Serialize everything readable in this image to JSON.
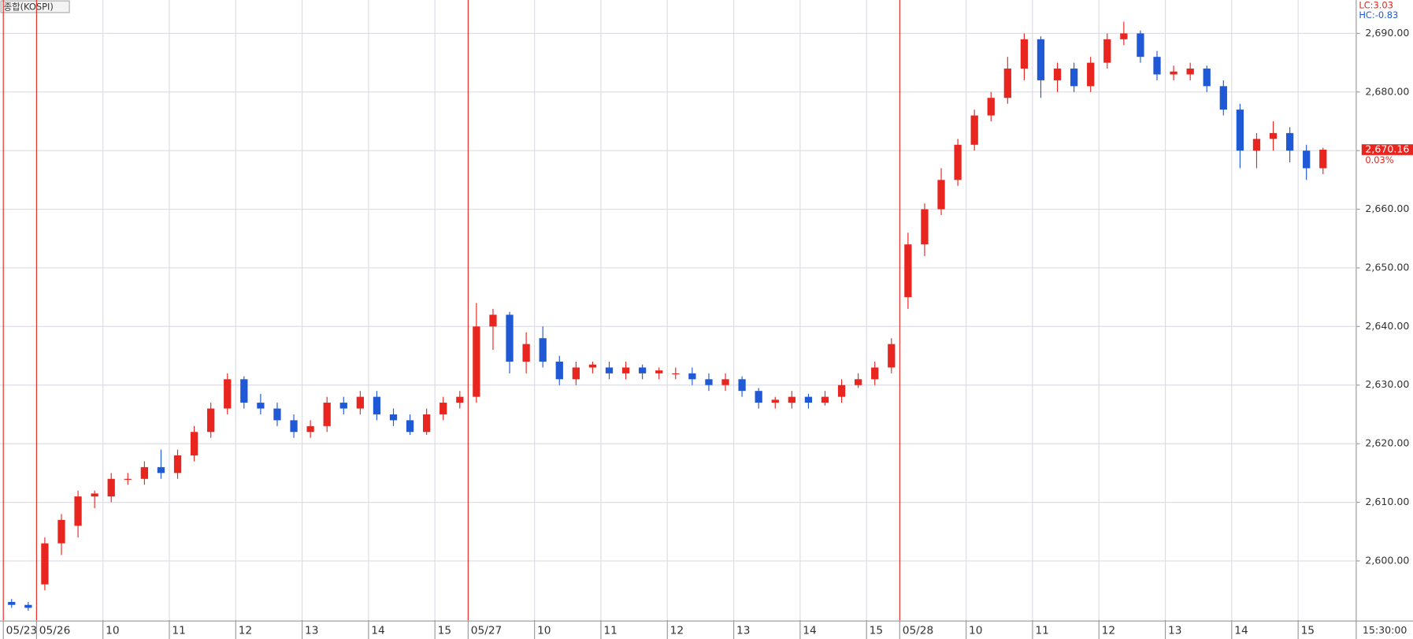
{
  "chart_data": {
    "type": "candlestick",
    "title": "종합(KOSPI)",
    "annotations": [
      "LC:3.03",
      "HC:-0.83"
    ],
    "last_price": {
      "value": 2670.16,
      "label": "2,670.16"
    },
    "last_change": "0.03%",
    "time_label": "15:30:00",
    "up_color": "#e8251f",
    "down_color": "#1f59d6",
    "grid": true,
    "ylim": [
      2589.9,
      2695.7
    ],
    "yticks": [
      {
        "value": 2600,
        "label": "2,600.00"
      },
      {
        "value": 2610,
        "label": "2,610.00"
      },
      {
        "value": 2620,
        "label": "2,620.00"
      },
      {
        "value": 2630,
        "label": "2,630.00"
      },
      {
        "value": 2640,
        "label": "2,640.00"
      },
      {
        "value": 2650,
        "label": "2,650.00"
      },
      {
        "value": 2660,
        "label": "2,660.00"
      },
      {
        "value": 2670,
        "label": "2,670.00"
      },
      {
        "value": 2680,
        "label": "2,680.00"
      },
      {
        "value": 2690,
        "label": "2,690.00"
      }
    ],
    "xlim": [
      -0.2,
      81.5
    ],
    "xticks": [
      {
        "value": 0,
        "label": "05/23"
      },
      {
        "value": 2,
        "label": "05/26"
      },
      {
        "value": 6,
        "label": "10"
      },
      {
        "value": 10,
        "label": "11"
      },
      {
        "value": 14,
        "label": "12"
      },
      {
        "value": 18,
        "label": "13"
      },
      {
        "value": 22,
        "label": "14"
      },
      {
        "value": 26,
        "label": "15"
      },
      {
        "value": 28,
        "label": "05/27"
      },
      {
        "value": 32,
        "label": "10"
      },
      {
        "value": 36,
        "label": "11"
      },
      {
        "value": 40,
        "label": "12"
      },
      {
        "value": 44,
        "label": "13"
      },
      {
        "value": 48,
        "label": "14"
      },
      {
        "value": 52,
        "label": "15"
      },
      {
        "value": 54,
        "label": "05/28"
      },
      {
        "value": 58,
        "label": "10"
      },
      {
        "value": 62,
        "label": "11"
      },
      {
        "value": 66,
        "label": "12"
      },
      {
        "value": 70,
        "label": "13"
      },
      {
        "value": 74,
        "label": "14"
      },
      {
        "value": 78,
        "label": "15"
      }
    ],
    "open": [
      2593,
      2592.5,
      2596,
      2603,
      2606,
      2611,
      2611,
      2614,
      2614,
      2616,
      2615,
      2618,
      2622,
      2626,
      2631,
      2627,
      2626,
      2624,
      2622,
      2623,
      2627,
      2626,
      2628,
      2625,
      2624,
      2622,
      2625,
      2627,
      2628,
      2640,
      2642,
      2634,
      2638,
      2634,
      2631,
      2633,
      2633,
      2632,
      2633,
      2632,
      2632,
      2632,
      2631,
      2630,
      2631,
      2629,
      2627,
      2627,
      2628,
      2627,
      2628,
      2630,
      2631,
      2633,
      2645,
      2654,
      2660,
      2665,
      2671,
      2676,
      2679,
      2684,
      2689,
      2682,
      2684,
      2681,
      2685,
      2689,
      2690,
      2686,
      2683,
      2683,
      2684,
      2681,
      2677,
      2670,
      2672,
      2673,
      2670,
      2667
    ],
    "high": [
      2593.5,
      2593,
      2604,
      2608,
      2612,
      2612,
      2615,
      2615,
      2617,
      2619,
      2619,
      2623,
      2627,
      2632,
      2631.5,
      2628.5,
      2627,
      2625,
      2624,
      2628,
      2628,
      2629,
      2629,
      2626,
      2625,
      2626,
      2628,
      2629,
      2644,
      2643,
      2642.5,
      2639,
      2640,
      2635,
      2634,
      2634,
      2634,
      2634,
      2633.5,
      2633,
      2633,
      2633,
      2632,
      2632,
      2631.5,
      2629.5,
      2628,
      2629,
      2628.5,
      2629,
      2631,
      2632,
      2634,
      2638,
      2656,
      2661,
      2667,
      2672,
      2677,
      2680,
      2686,
      2690,
      2689.5,
      2685,
      2685,
      2686,
      2690,
      2692,
      2690.5,
      2687,
      2684.5,
      2685,
      2684.5,
      2682,
      2678,
      2673,
      2675,
      2674,
      2671,
      2670.5
    ],
    "low": [
      2592,
      2591.5,
      2595,
      2601,
      2604,
      2609,
      2610,
      2613,
      2613,
      2614,
      2614,
      2617,
      2621,
      2625,
      2626,
      2625,
      2623,
      2621,
      2621,
      2622,
      2625,
      2625,
      2624,
      2623,
      2621.5,
      2621.5,
      2624,
      2626,
      2627,
      2636,
      2632,
      2632,
      2633,
      2630,
      2630,
      2632,
      2631,
      2631,
      2631,
      2631,
      2631,
      2630,
      2629,
      2629,
      2628,
      2626,
      2626,
      2626,
      2626,
      2626.5,
      2627,
      2629.5,
      2630,
      2632,
      2643,
      2652,
      2659,
      2664,
      2670,
      2675,
      2678,
      2682,
      2679,
      2680,
      2680,
      2680,
      2684,
      2688,
      2685,
      2682,
      2682,
      2682,
      2680,
      2676,
      2667,
      2667,
      2670,
      2668,
      2665,
      2666
    ],
    "close": [
      2592.5,
      2592,
      2603,
      2607,
      2611,
      2611.5,
      2614,
      2614,
      2616,
      2615,
      2618,
      2622,
      2626,
      2631,
      2627,
      2626,
      2624,
      2622,
      2623,
      2627,
      2626,
      2628,
      2625,
      2624,
      2622,
      2625,
      2627,
      2628,
      2640,
      2642,
      2634,
      2637,
      2634,
      2631,
      2633,
      2633.5,
      2632,
      2633,
      2632,
      2632.5,
      2632,
      2631,
      2630,
      2631,
      2629,
      2627,
      2627.5,
      2628,
      2627,
      2628,
      2630,
      2631,
      2633,
      2637,
      2654,
      2660,
      2665,
      2671,
      2676,
      2679,
      2684,
      2689,
      2682,
      2684,
      2681,
      2685,
      2689,
      2690,
      2686,
      2683,
      2683.5,
      2684,
      2681,
      2677,
      2670,
      2672,
      2673,
      2670,
      2667,
      2670.16
    ]
  }
}
